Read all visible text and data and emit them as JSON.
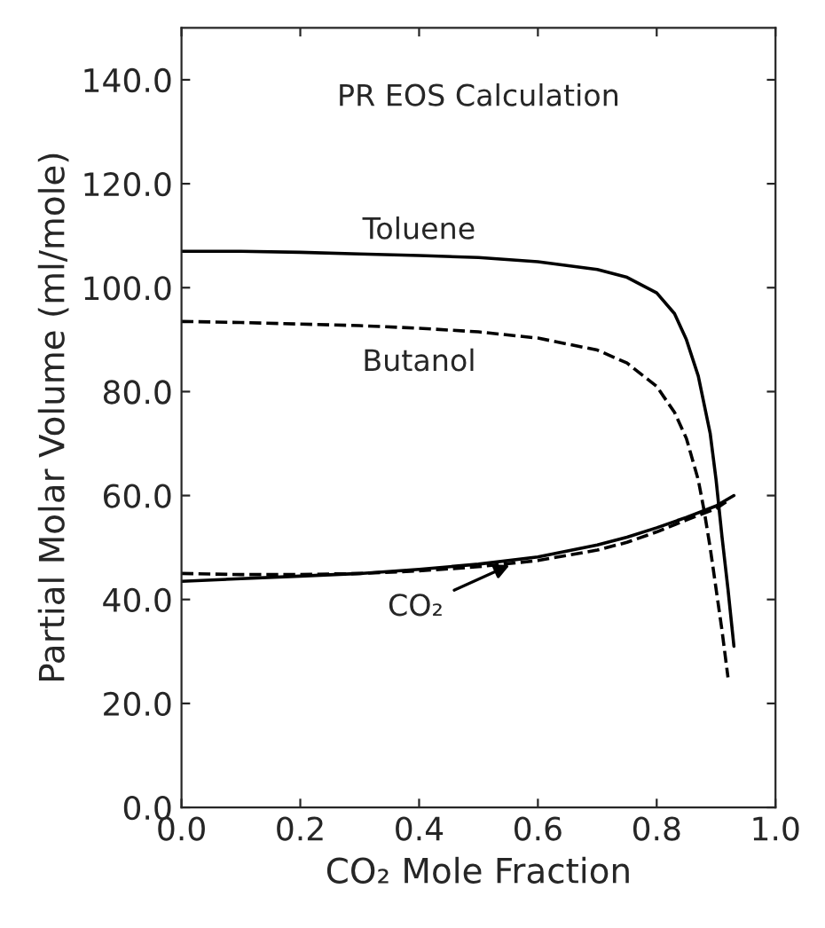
{
  "chart_data": {
    "type": "line",
    "xlabel": "CO₂ Mole Fraction",
    "ylabel": "Partial Molar Volume (ml/mole)",
    "xlim": [
      0,
      1.0
    ],
    "ylim": [
      0,
      150
    ],
    "xticks": [
      {
        "value": 0,
        "label": "0.0"
      },
      {
        "value": 0.2,
        "label": "0.2"
      },
      {
        "value": 0.4,
        "label": "0.4"
      },
      {
        "value": 0.6,
        "label": "0.6"
      },
      {
        "value": 0.8,
        "label": "0.8"
      },
      {
        "value": 1.0,
        "label": "1.0"
      }
    ],
    "yticks": [
      {
        "value": 0,
        "label": "0.0"
      },
      {
        "value": 20,
        "label": "20.0"
      },
      {
        "value": 40,
        "label": "40.0"
      },
      {
        "value": 60,
        "label": "60.0"
      },
      {
        "value": 80,
        "label": "80.0"
      },
      {
        "value": 100,
        "label": "100.0"
      },
      {
        "value": 120,
        "label": "120.0"
      },
      {
        "value": 140,
        "label": "140.0"
      }
    ],
    "grid": false,
    "legend": false,
    "series": [
      {
        "name": "Toluene",
        "color": "#000000",
        "line_style": "solid",
        "x": [
          0,
          0.1,
          0.2,
          0.3,
          0.4,
          0.5,
          0.6,
          0.7,
          0.75,
          0.8,
          0.83,
          0.85,
          0.87,
          0.89,
          0.9,
          0.91,
          0.92,
          0.93
        ],
        "values": [
          107,
          107,
          106.8,
          106.5,
          106.2,
          105.8,
          105,
          103.5,
          102,
          99,
          95,
          90,
          83,
          72,
          63,
          52,
          42,
          31
        ]
      },
      {
        "name": "Butanol",
        "color": "#000000",
        "line_style": "dashed",
        "x": [
          0,
          0.1,
          0.2,
          0.3,
          0.4,
          0.5,
          0.6,
          0.7,
          0.75,
          0.8,
          0.83,
          0.85,
          0.87,
          0.88,
          0.89,
          0.9,
          0.91,
          0.92
        ],
        "values": [
          93.5,
          93.3,
          93,
          92.7,
          92.2,
          91.5,
          90.3,
          88,
          85.5,
          81,
          76,
          71,
          63,
          57,
          50,
          42,
          34,
          25
        ]
      },
      {
        "color": "#000000",
        "line_style": "solid",
        "x": [
          0,
          0.1,
          0.2,
          0.3,
          0.4,
          0.5,
          0.6,
          0.7,
          0.75,
          0.8,
          0.85,
          0.9,
          0.93
        ],
        "values": [
          43.5,
          44,
          44.5,
          45,
          45.8,
          46.8,
          48.2,
          50.5,
          52,
          53.8,
          55.8,
          58,
          60
        ]
      },
      {
        "color": "#000000",
        "line_style": "dashed",
        "x": [
          0,
          0.1,
          0.2,
          0.3,
          0.4,
          0.5,
          0.6,
          0.7,
          0.75,
          0.8,
          0.85,
          0.9,
          0.92
        ],
        "values": [
          45,
          44.8,
          44.8,
          45,
          45.5,
          46.3,
          47.5,
          49.5,
          51,
          53,
          55.3,
          57.5,
          59
        ]
      }
    ],
    "annotations": [
      "PR EOS Calculation",
      {
        "text": "CO₂",
        "x": 0.56,
        "y": 47
      }
    ]
  }
}
